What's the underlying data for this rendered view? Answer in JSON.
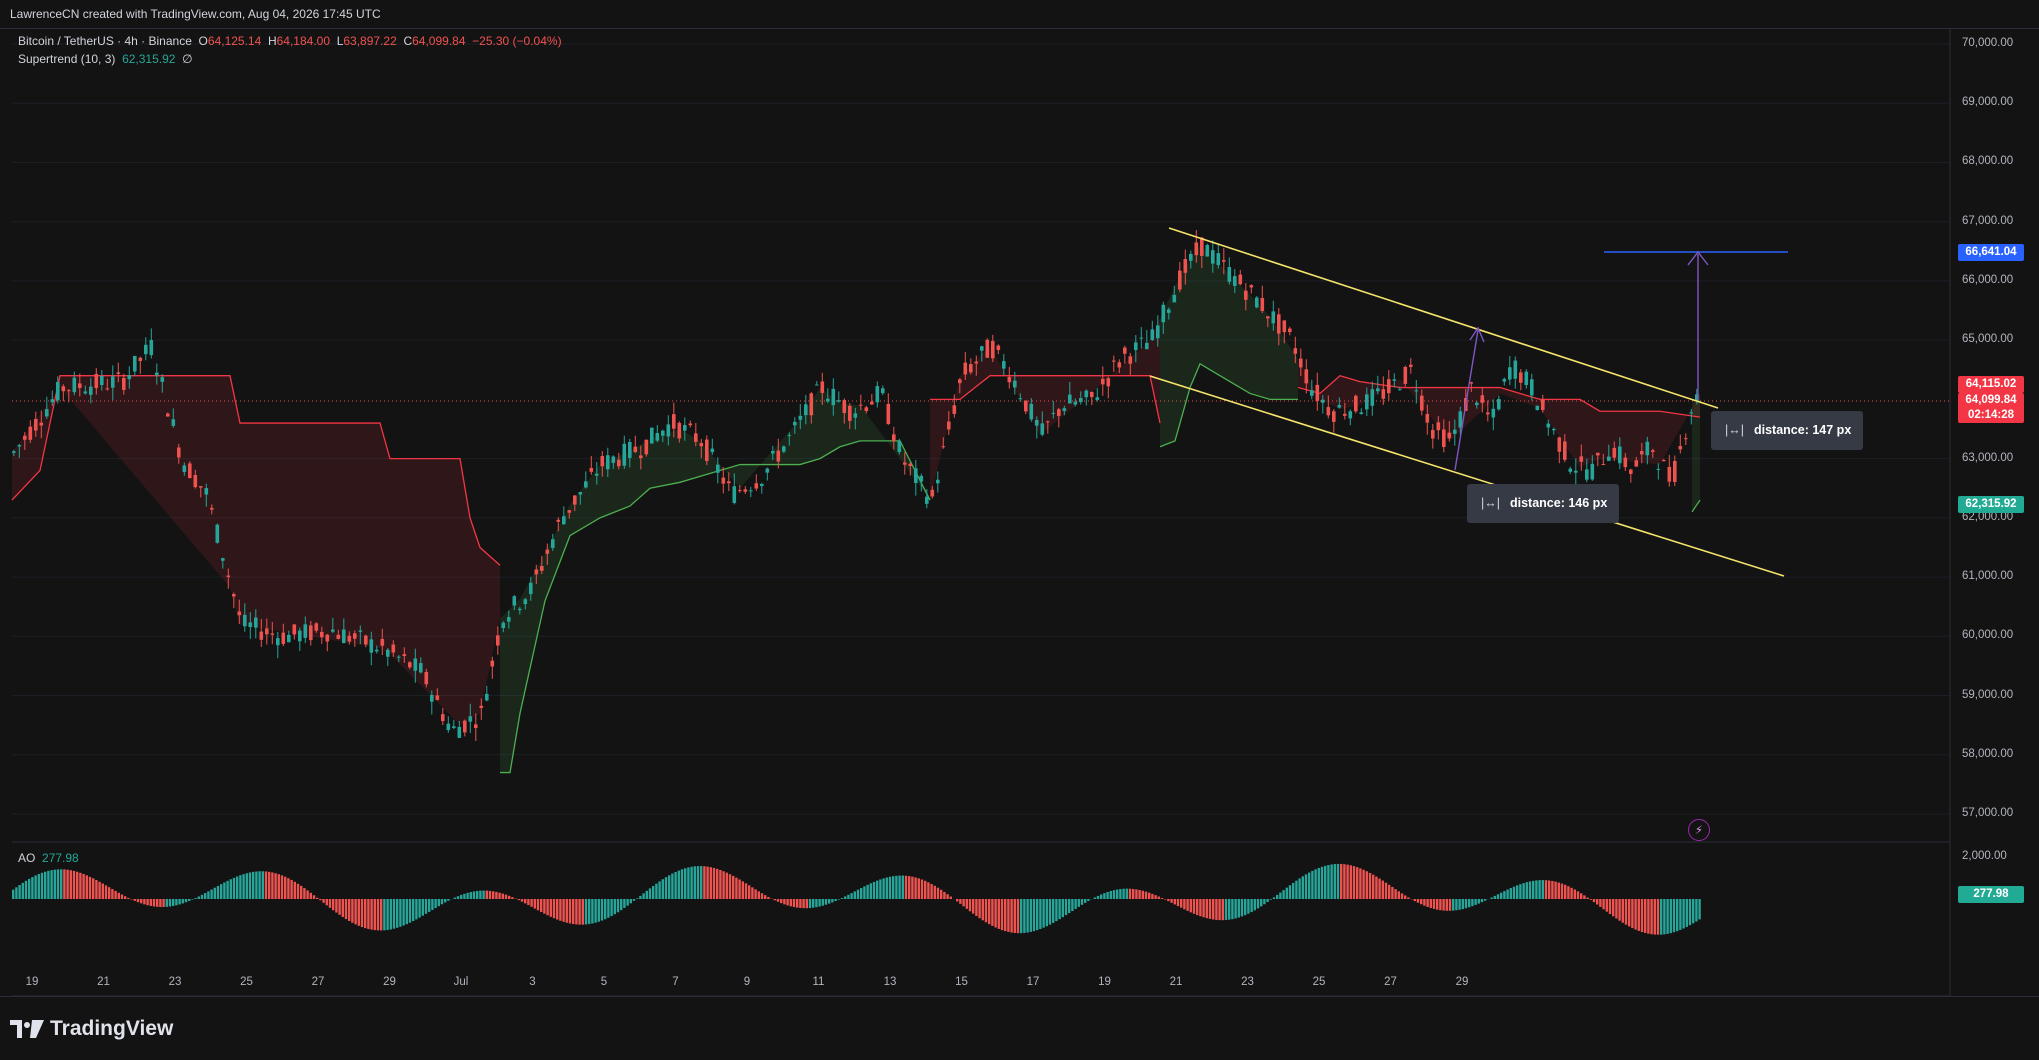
{
  "header": {
    "created_by": "LawrenceCN created with TradingView.com, Aug 04, 2026 17:45 UTC"
  },
  "legend": {
    "symbol": "Bitcoin / TetherUS · 4h · Binance",
    "o_label": "O",
    "o_value": "64,125.14",
    "h_label": "H",
    "h_value": "64,184.00",
    "l_label": "L",
    "l_value": "63,897.22",
    "c_label": "C",
    "c_value": "64,099.84",
    "change": "−25.30 (−0.04%)",
    "supertrend_label": "Supertrend (10, 3)",
    "supertrend_value": "62,315.92",
    "supertrend_flag": "∅"
  },
  "ao": {
    "label": "AO",
    "value": "277.98",
    "axis_tick": "2,000.00",
    "badge": "277.98"
  },
  "price_axis": {
    "ticks": [
      "70,000.00",
      "69,000.00",
      "68,000.00",
      "67,000.00",
      "66,000.00",
      "65,000.00",
      "63,000.00",
      "62,000.00",
      "61,000.00",
      "60,000.00",
      "59,000.00",
      "58,000.00",
      "57,000.00"
    ]
  },
  "badges": {
    "target": "66,641.04",
    "high": "64,115.02",
    "last": "64,099.84",
    "countdown": "02:14:28",
    "supertrend": "62,315.92"
  },
  "time_axis": {
    "ticks": [
      "19",
      "21",
      "23",
      "25",
      "27",
      "29",
      "Jul",
      "3",
      "5",
      "7",
      "9",
      "11",
      "13",
      "15",
      "17",
      "19",
      "21",
      "23",
      "25",
      "27",
      "29"
    ]
  },
  "annotations": {
    "distance_upper": "distance: 147 px",
    "distance_lower": "distance: 146 px",
    "ruler_glyph": "|↔|"
  },
  "footer": {
    "brand": "TradingView"
  },
  "colors": {
    "background": "#131313",
    "bull": "#26a69a",
    "bear": "#ef5350",
    "channel": "#f5e36b",
    "target_line": "#2962ff",
    "arrow": "#7e57c2",
    "supertrend_up": "#4caf50",
    "supertrend_down": "#f23645"
  },
  "chart_data": {
    "type": "candlestick",
    "title": "Bitcoin / TetherUS · 4h · Binance",
    "ylim": [
      56800,
      70300
    ],
    "price_ticks": [
      70000,
      69000,
      68000,
      67000,
      66000,
      65000,
      63000,
      62000,
      61000,
      60000,
      59000,
      58000,
      57000
    ],
    "last_price": 64099.84,
    "target_level": 66641.04,
    "supertrend_value": 62315.92,
    "series": [
      {
        "name": "Supertrend (10, 3)",
        "value": 62315.92
      },
      {
        "name": "AO",
        "value": 277.98
      }
    ],
    "ohlc_last": {
      "open": 64125.14,
      "high": 64184.0,
      "low": 63897.22,
      "close": 64099.84,
      "change": -25.3,
      "change_pct": -0.04
    }
  }
}
